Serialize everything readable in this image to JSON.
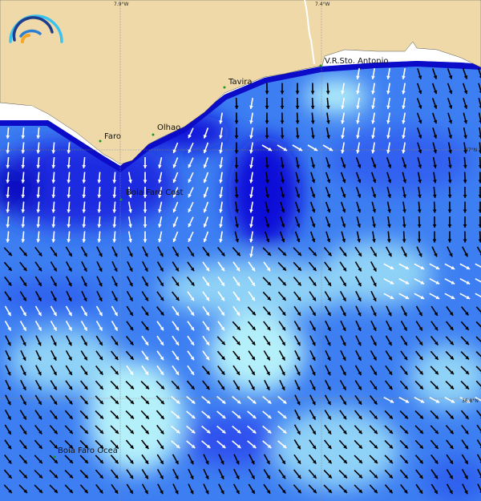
{
  "map": {
    "grid_labels": {
      "lon": [
        "7.9°W",
        "7.4°W"
      ],
      "lat": [
        "37°N",
        "36.8°N"
      ]
    },
    "places": [
      {
        "name": "Faro"
      },
      {
        "name": "Olhao"
      },
      {
        "name": "Tavira"
      },
      {
        "name": "V.R.Sto. Antonio"
      }
    ],
    "buoys": [
      {
        "name": "Boia Faro Cost"
      },
      {
        "name": "Boia Faro Ocea"
      }
    ],
    "colors": {
      "land": "#efd9a8",
      "no_data": "#ffffff",
      "deep_blue": "#1010d8",
      "mid_blue": "#2e6ff0",
      "light_blue": "#6fb5f5",
      "pale_cyan": "#b4f0fa",
      "arrow_white": "#ffffff",
      "arrow_black": "#000000",
      "station": "#1a9a1a"
    },
    "legend": {
      "type": "current-direction arrows over speed field"
    }
  }
}
